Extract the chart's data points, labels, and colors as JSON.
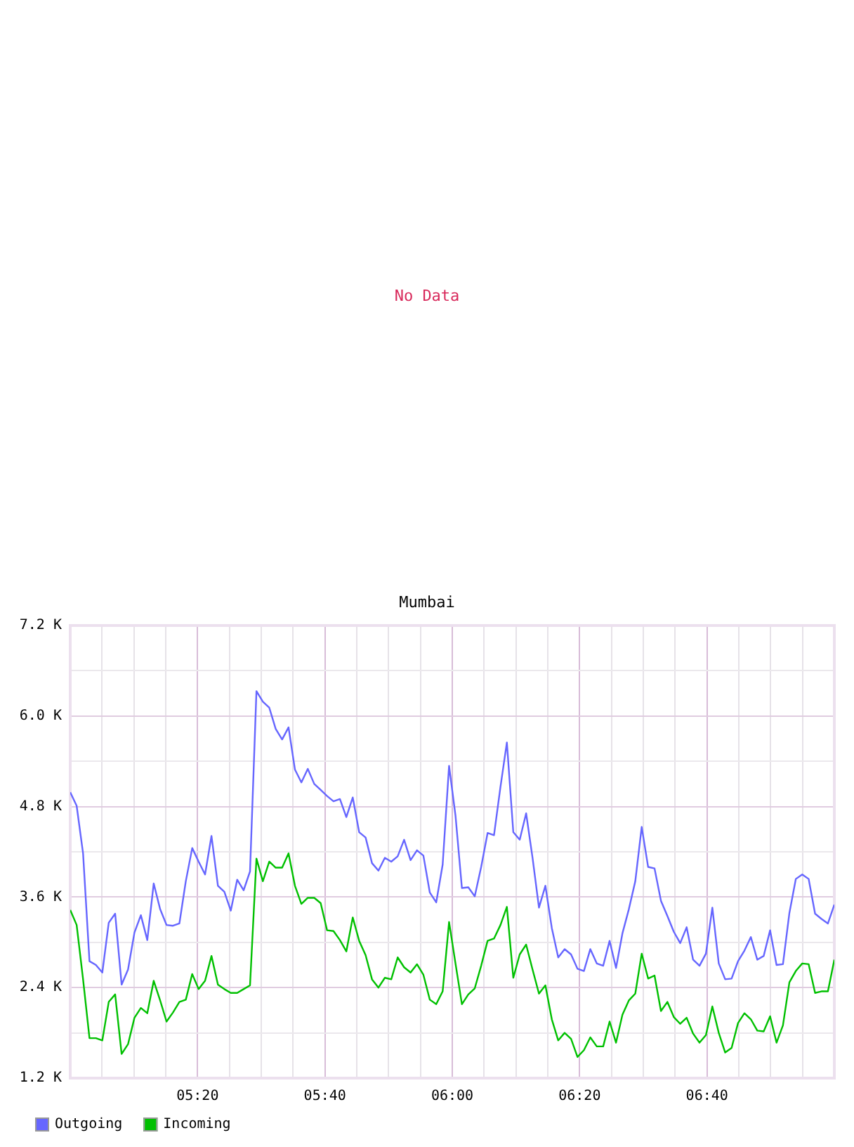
{
  "chart_data": [
    {
      "type": "other",
      "annotations": [
        "No Data"
      ]
    },
    {
      "type": "line",
      "title": "Mumbai",
      "x": [
        5,
        5.0168,
        5.0336,
        5.0504,
        5.0672,
        5.084,
        5.1008,
        5.1176,
        5.1345,
        5.1513,
        5.1681,
        5.1849,
        5.2017,
        5.2185,
        5.2353,
        5.2521,
        5.2689,
        5.2857,
        5.3025,
        5.3193,
        5.3361,
        5.3529,
        5.3697,
        5.3866,
        5.4034,
        5.4202,
        5.437,
        5.4538,
        5.4706,
        5.4874,
        5.5042,
        5.521,
        5.5378,
        5.5546,
        5.5714,
        5.5882,
        5.605,
        5.6218,
        5.6387,
        5.6555,
        5.6723,
        5.6891,
        5.7059,
        5.7227,
        5.7395,
        5.7563,
        5.7731,
        5.7899,
        5.8067,
        5.8235,
        5.8403,
        5.8571,
        5.8739,
        5.8908,
        5.9076,
        5.9244,
        5.9412,
        5.958,
        5.9748,
        5.9916,
        6.0084,
        6.0252,
        6.042,
        6.0588,
        6.0756,
        6.0924,
        6.1092,
        6.1261,
        6.1429,
        6.1597,
        6.1765,
        6.1933,
        6.2101,
        6.2269,
        6.2437,
        6.2605,
        6.2773,
        6.2941,
        6.3109,
        6.3277,
        6.3445,
        6.3613,
        6.3782,
        6.395,
        6.4118,
        6.4286,
        6.4454,
        6.4622,
        6.479,
        6.4958,
        6.5126,
        6.5294,
        6.5462,
        6.563,
        6.5798,
        6.5966,
        6.6134,
        6.6303,
        6.6471,
        6.6639,
        6.6807,
        6.6975,
        6.7143,
        6.7311,
        6.7479,
        6.7647,
        6.7815,
        6.7983,
        6.8151,
        6.8319,
        6.8487,
        6.8655,
        6.8824,
        6.8992,
        6.916,
        6.9328,
        6.9496,
        6.9664,
        6.9832,
        7
      ],
      "series": [
        {
          "name": "Outgoing",
          "color": "#6666ff",
          "values": [
            4990,
            4810,
            4180,
            2750,
            2700,
            2600,
            3260,
            3380,
            2440,
            2640,
            3130,
            3360,
            3030,
            3780,
            3440,
            3230,
            3220,
            3250,
            3810,
            4250,
            4070,
            3900,
            4410,
            3750,
            3670,
            3420,
            3830,
            3690,
            3940,
            6330,
            6190,
            6110,
            5830,
            5690,
            5850,
            5290,
            5120,
            5300,
            5100,
            5020,
            4940,
            4870,
            4900,
            4660,
            4920,
            4460,
            4390,
            4050,
            3950,
            4120,
            4070,
            4140,
            4360,
            4090,
            4220,
            4150,
            3660,
            3530,
            4030,
            5340,
            4680,
            3720,
            3730,
            3610,
            4000,
            4450,
            4420,
            5060,
            5650,
            4460,
            4360,
            4710,
            4120,
            3460,
            3750,
            3190,
            2800,
            2910,
            2840,
            2650,
            2620,
            2910,
            2720,
            2690,
            3020,
            2660,
            3120,
            3440,
            3810,
            4530,
            4000,
            3980,
            3550,
            3350,
            3140,
            2990,
            3200,
            2770,
            2690,
            2850,
            3460,
            2720,
            2510,
            2520,
            2750,
            2890,
            3070,
            2770,
            2820,
            3160,
            2700,
            2710,
            3390,
            3840,
            3900,
            3840,
            3380,
            3310,
            3250,
            3500
          ]
        },
        {
          "name": "Incoming",
          "color": "#00c000",
          "values": [
            3430,
            3230,
            2510,
            1730,
            1730,
            1700,
            2210,
            2310,
            1520,
            1650,
            2000,
            2130,
            2060,
            2490,
            2230,
            1950,
            2070,
            2210,
            2240,
            2580,
            2380,
            2490,
            2820,
            2440,
            2380,
            2330,
            2330,
            2380,
            2430,
            4110,
            3810,
            4070,
            3990,
            3990,
            4180,
            3750,
            3510,
            3590,
            3590,
            3520,
            3160,
            3150,
            3030,
            2880,
            3330,
            3020,
            2830,
            2510,
            2400,
            2530,
            2510,
            2800,
            2670,
            2600,
            2710,
            2570,
            2240,
            2180,
            2350,
            3270,
            2720,
            2180,
            2310,
            2390,
            2690,
            3020,
            3050,
            3230,
            3470,
            2530,
            2840,
            2970,
            2640,
            2320,
            2430,
            1980,
            1700,
            1800,
            1720,
            1480,
            1570,
            1740,
            1620,
            1620,
            1950,
            1670,
            2040,
            2230,
            2320,
            2850,
            2520,
            2560,
            2090,
            2210,
            2010,
            1920,
            2000,
            1790,
            1670,
            1770,
            2150,
            1800,
            1540,
            1600,
            1930,
            2060,
            1980,
            1830,
            1820,
            2020,
            1670,
            1900,
            2470,
            2620,
            2720,
            2710,
            2330,
            2350,
            2350,
            2770
          ]
        }
      ],
      "xlim": [
        5,
        7
      ],
      "xticks": [
        {
          "value": 5.0833,
          "label": null
        },
        {
          "value": 5.1667,
          "label": null
        },
        {
          "value": 5.25,
          "label": null
        },
        {
          "value": 5.3333,
          "label": "05:20"
        },
        {
          "value": 5.4167,
          "label": null
        },
        {
          "value": 5.5,
          "label": null
        },
        {
          "value": 5.5833,
          "label": null
        },
        {
          "value": 5.6667,
          "label": "05:40"
        },
        {
          "value": 5.75,
          "label": null
        },
        {
          "value": 5.8333,
          "label": null
        },
        {
          "value": 5.9167,
          "label": null
        },
        {
          "value": 6,
          "label": "06:00"
        },
        {
          "value": 6.0833,
          "label": null
        },
        {
          "value": 6.1667,
          "label": null
        },
        {
          "value": 6.25,
          "label": null
        },
        {
          "value": 6.3333,
          "label": "06:20"
        },
        {
          "value": 6.4167,
          "label": null
        },
        {
          "value": 6.5,
          "label": null
        },
        {
          "value": 6.5833,
          "label": null
        },
        {
          "value": 6.6667,
          "label": "06:40"
        },
        {
          "value": 6.75,
          "label": null
        },
        {
          "value": 6.8333,
          "label": null
        },
        {
          "value": 6.9167,
          "label": null
        }
      ],
      "ylim": [
        1200,
        7200
      ],
      "yticks": [
        {
          "value": 1200,
          "label": "1.2 K"
        },
        {
          "value": 1800,
          "label": null
        },
        {
          "value": 2400,
          "label": "2.4 K"
        },
        {
          "value": 3000,
          "label": null
        },
        {
          "value": 3600,
          "label": "3.6 K"
        },
        {
          "value": 4200,
          "label": null
        },
        {
          "value": 4800,
          "label": "4.8 K"
        },
        {
          "value": 5400,
          "label": null
        },
        {
          "value": 6000,
          "label": "6.0 K"
        },
        {
          "value": 6600,
          "label": null
        },
        {
          "value": 7200,
          "label": "7.2 K"
        }
      ],
      "grid": true,
      "legend": "bottom left",
      "line_style": "solid"
    }
  ]
}
